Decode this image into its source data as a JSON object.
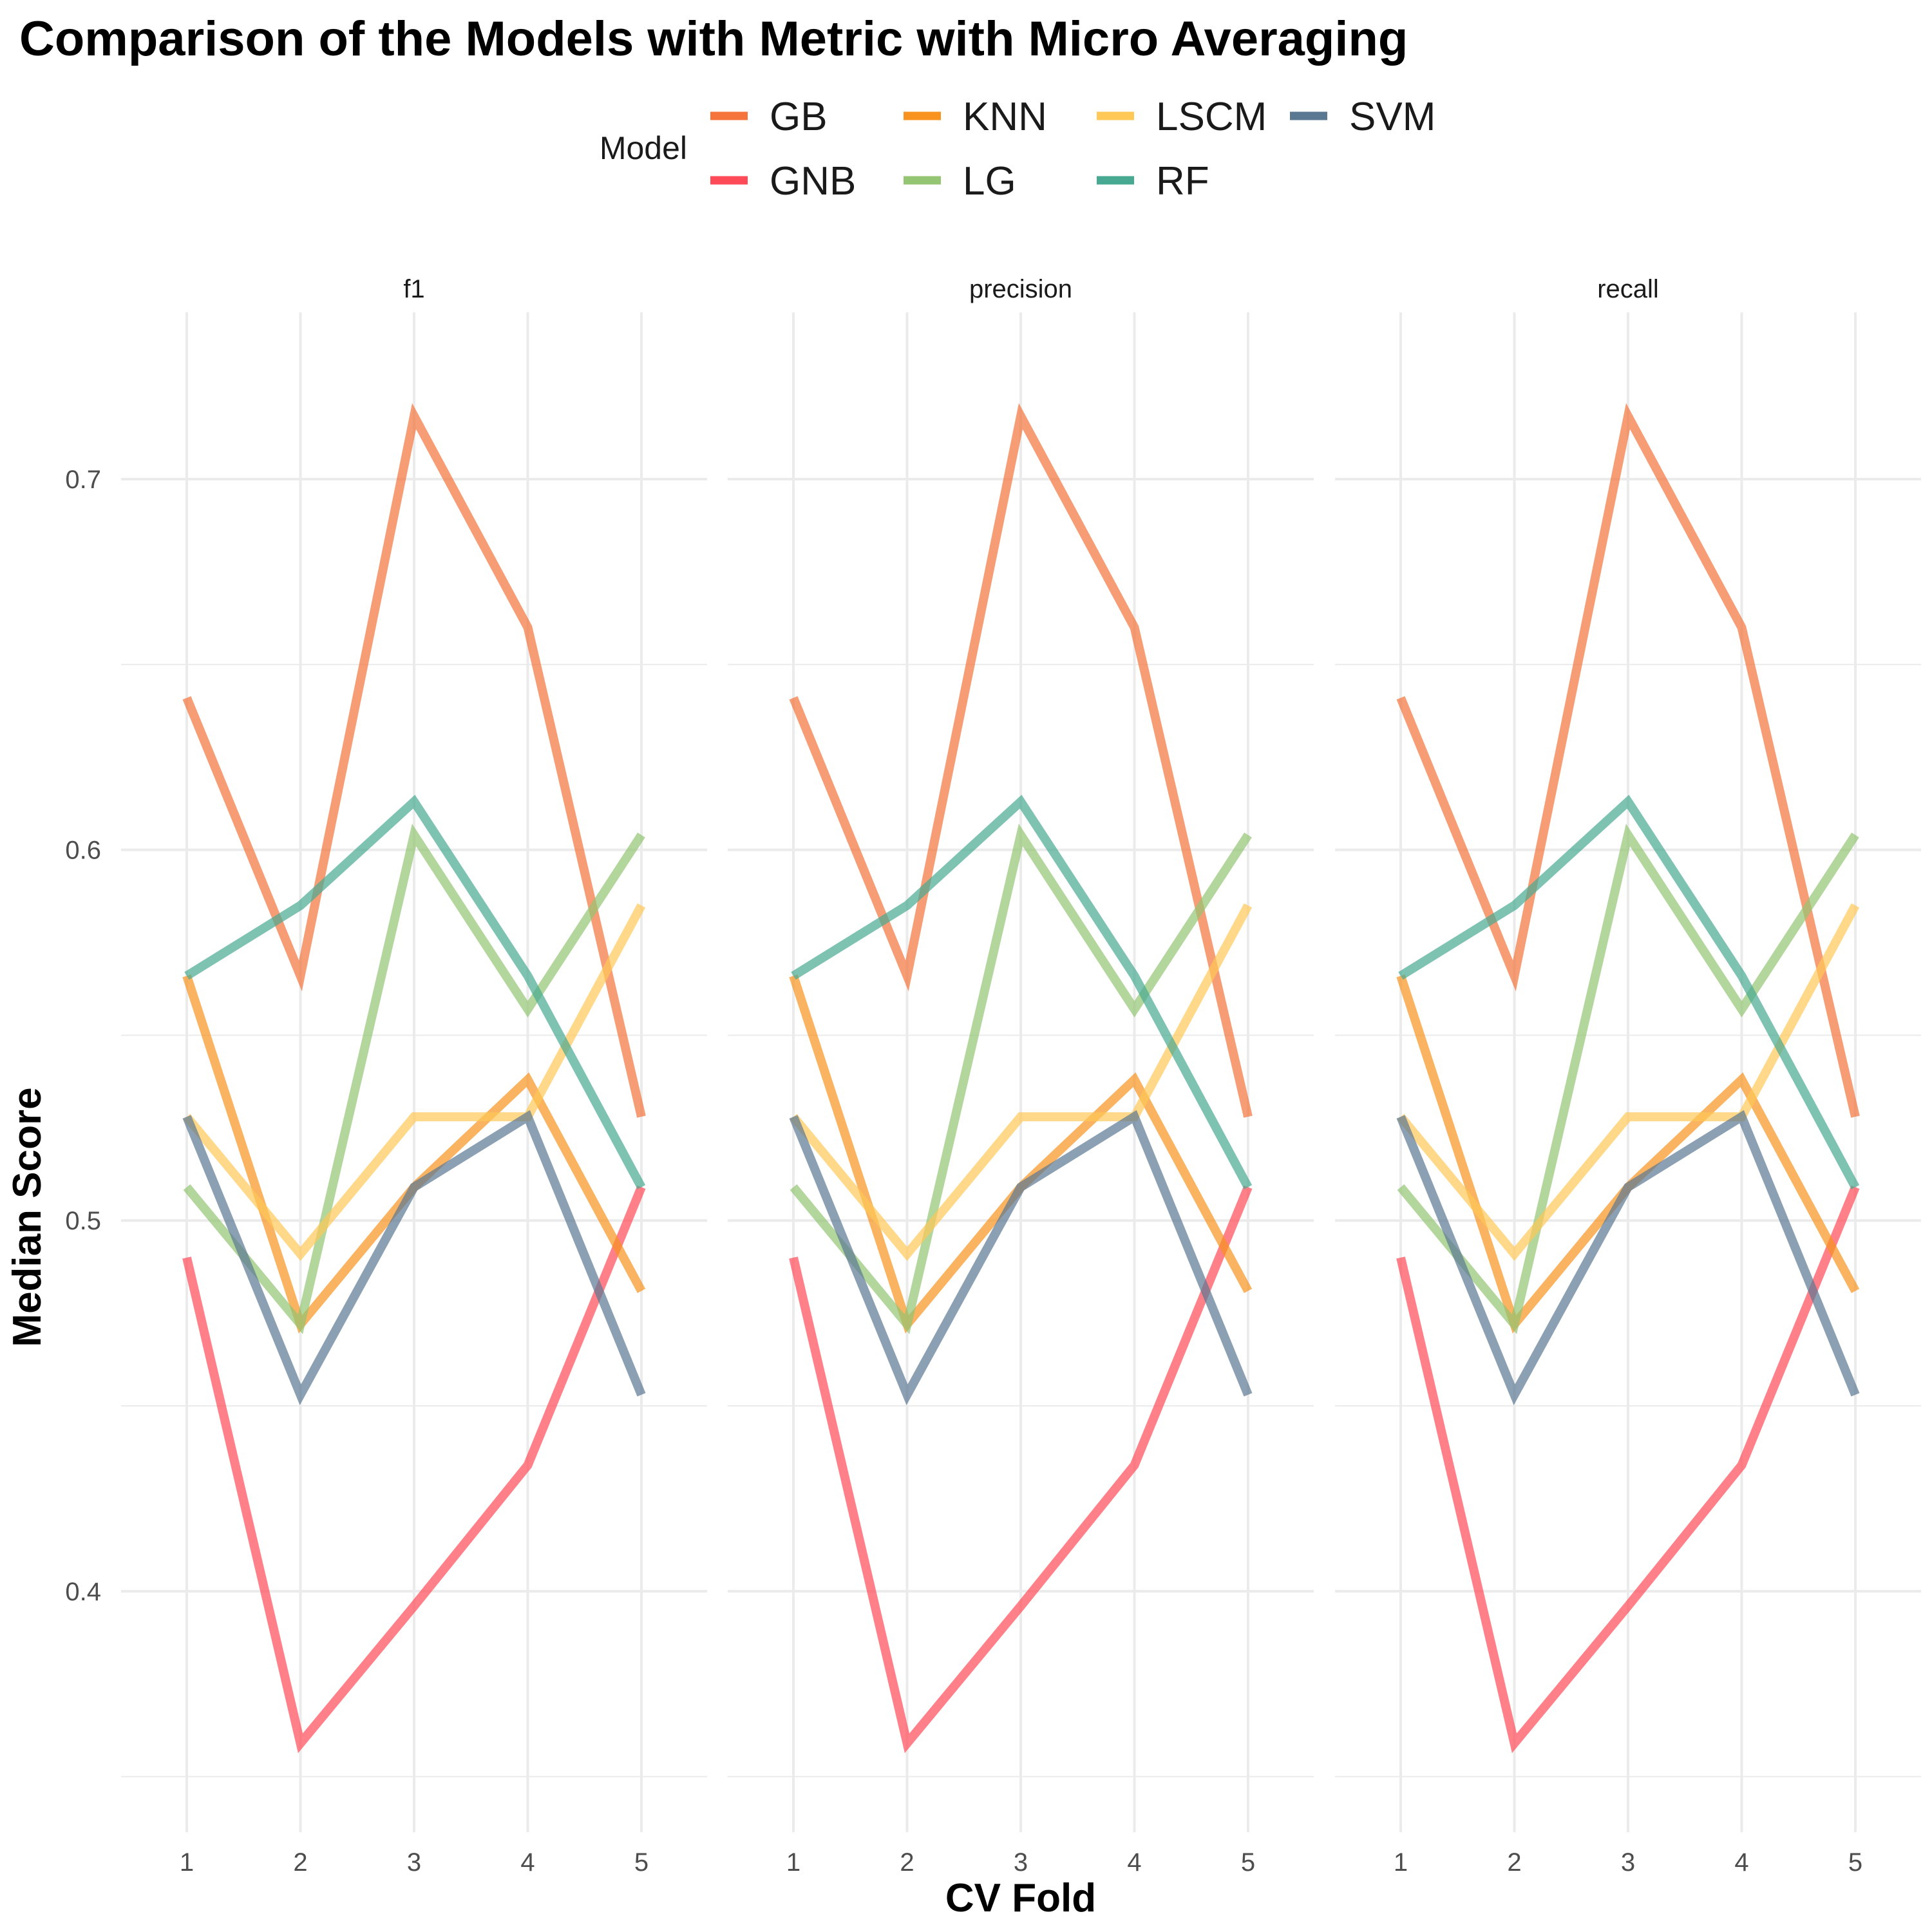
{
  "chart_data": {
    "type": "line",
    "title": "Comparison of the Models with Metric with Micro Averaging",
    "xlabel": "CV Fold",
    "ylabel": "Median Score",
    "legend_title": "Model",
    "legend_position": "top",
    "x": [
      1,
      2,
      3,
      4,
      5
    ],
    "x_ticks": [
      "1",
      "2",
      "3",
      "4",
      "5"
    ],
    "y_ticks": [
      0.4,
      0.5,
      0.6,
      0.7
    ],
    "y_tick_labels": [
      "0.4",
      "0.5",
      "0.6",
      "0.7"
    ],
    "ylim": [
      0.335,
      0.745
    ],
    "grid": true,
    "facets": [
      "f1",
      "precision",
      "recall"
    ],
    "series": [
      {
        "name": "GB",
        "color": "#F4743B",
        "values": [
          0.641,
          0.566,
          0.717,
          0.66,
          0.528
        ]
      },
      {
        "name": "GNB",
        "color": "#FF4A57",
        "values": [
          0.49,
          0.359,
          0.396,
          0.434,
          0.509
        ]
      },
      {
        "name": "KNN",
        "color": "#F7931E",
        "values": [
          0.566,
          0.472,
          0.509,
          0.538,
          0.481
        ]
      },
      {
        "name": "LG",
        "color": "#93C572",
        "values": [
          0.509,
          0.472,
          0.604,
          0.557,
          0.604
        ]
      },
      {
        "name": "LSCM",
        "color": "#FFC857",
        "values": [
          0.528,
          0.491,
          0.528,
          0.528,
          0.585
        ]
      },
      {
        "name": "RF",
        "color": "#47A992",
        "values": [
          0.566,
          0.585,
          0.613,
          0.566,
          0.509
        ]
      },
      {
        "name": "SVM",
        "color": "#5B7893",
        "values": [
          0.528,
          0.453,
          0.509,
          0.528,
          0.453
        ]
      }
    ]
  }
}
